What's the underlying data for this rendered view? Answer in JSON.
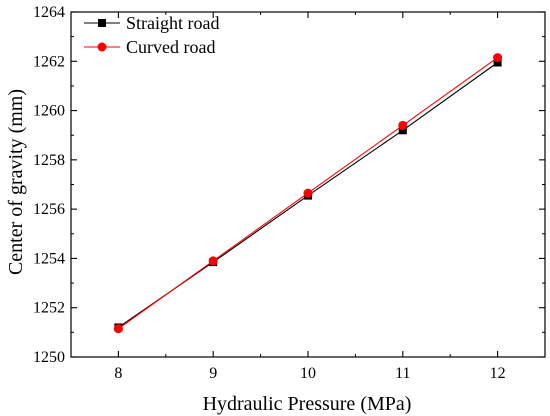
{
  "chart_data": {
    "type": "line",
    "title": "",
    "xlabel": "Hydraulic Pressure (MPa)",
    "ylabel": "Center of gravity (mm)",
    "x": [
      8,
      9,
      10,
      11,
      12
    ],
    "xlim": [
      7.5,
      12.5
    ],
    "ylim": [
      1250,
      1264
    ],
    "xticks": [
      8,
      9,
      10,
      11,
      12
    ],
    "yticks": [
      1250,
      1252,
      1254,
      1256,
      1258,
      1260,
      1262,
      1264
    ],
    "grid": false,
    "legend_position": "top-left",
    "series": [
      {
        "name": "Straight road",
        "marker": "square",
        "color": "#000000",
        "values": [
          1251.2,
          1253.85,
          1256.55,
          1259.2,
          1261.95
        ]
      },
      {
        "name": "Curved road",
        "marker": "circle",
        "color": "#ff0000",
        "values": [
          1251.15,
          1253.9,
          1256.65,
          1259.4,
          1262.15
        ]
      }
    ]
  }
}
